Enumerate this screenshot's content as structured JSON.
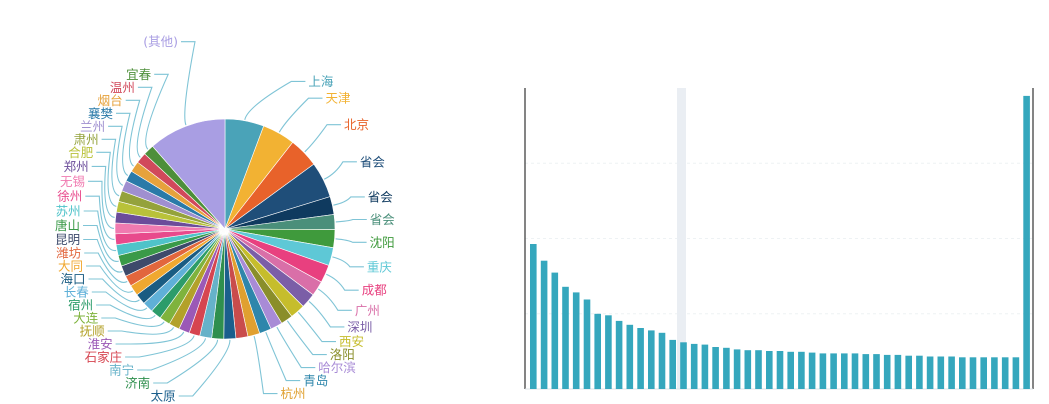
{
  "chart_data": [
    {
      "type": "pie",
      "legend": "none",
      "slices": [
        {
          "label": "上海",
          "value": 6.5,
          "color": "#4aa3b8"
        },
        {
          "label": "天津",
          "value": 5.5,
          "color": "#f2b233"
        },
        {
          "label": "北京",
          "value": 5.0,
          "color": "#e8622a"
        },
        {
          "label": "省会",
          "value": 6.0,
          "color": "#1f4e79"
        },
        {
          "label": "省会",
          "value": 3.0,
          "color": "#0f3a5f"
        },
        {
          "label": "省会",
          "value": 2.5,
          "color": "#4a8f7a"
        },
        {
          "label": "沈阳",
          "value": 3.0,
          "color": "#3f9a3c"
        },
        {
          "label": "重庆",
          "value": 3.0,
          "color": "#5ec8d6"
        },
        {
          "label": "成都",
          "value": 3.0,
          "color": "#e8407f"
        },
        {
          "label": "广州",
          "value": 2.5,
          "color": "#d96fa8"
        },
        {
          "label": "深圳",
          "value": 2.5,
          "color": "#7b5ea7"
        },
        {
          "label": "西安",
          "value": 2.5,
          "color": "#c6bd2c"
        },
        {
          "label": "洛阳",
          "value": 2.0,
          "color": "#8a8e2a"
        },
        {
          "label": "哈尔滨",
          "value": 2.0,
          "color": "#a88bd6"
        },
        {
          "label": "青岛",
          "value": 2.0,
          "color": "#2e86ab"
        },
        {
          "label": "杭州",
          "value": 2.0,
          "color": "#e0a030"
        },
        {
          "label": "",
          "value": 2.0,
          "color": "#c94c4c"
        },
        {
          "label": "太原",
          "value": 2.0,
          "color": "#1b5f8c"
        },
        {
          "label": "济南",
          "value": 2.0,
          "color": "#2f8f4e"
        },
        {
          "label": "南宁",
          "value": 2.0,
          "color": "#66b2c9"
        },
        {
          "label": "石家庄",
          "value": 1.8,
          "color": "#d64550"
        },
        {
          "label": "淮安",
          "value": 1.8,
          "color": "#9b59b6"
        },
        {
          "label": "抚顺",
          "value": 1.8,
          "color": "#b3a12a"
        },
        {
          "label": "大连",
          "value": 1.8,
          "color": "#7fb33d"
        },
        {
          "label": "宿州",
          "value": 1.8,
          "color": "#2c9c6a"
        },
        {
          "label": "长春",
          "value": 1.8,
          "color": "#5fb0d8"
        },
        {
          "label": "海口",
          "value": 1.8,
          "color": "#1a5c82"
        },
        {
          "label": "大同",
          "value": 1.8,
          "color": "#f0a830"
        },
        {
          "label": "潍坊",
          "value": 1.8,
          "color": "#e2663d"
        },
        {
          "label": "昆明",
          "value": 1.8,
          "color": "#3d4a6b"
        },
        {
          "label": "唐山",
          "value": 1.8,
          "color": "#3a9a48"
        },
        {
          "label": "苏州",
          "value": 1.8,
          "color": "#4fc3c9"
        },
        {
          "label": "徐州",
          "value": 1.8,
          "color": "#e84a8c"
        },
        {
          "label": "无锡",
          "value": 1.8,
          "color": "#f07ab0"
        },
        {
          "label": "郑州",
          "value": 1.8,
          "color": "#6b4c9a"
        },
        {
          "label": "合肥",
          "value": 1.8,
          "color": "#b9c23a"
        },
        {
          "label": "肃州",
          "value": 1.8,
          "color": "#94a23c"
        },
        {
          "label": "兰州",
          "value": 1.8,
          "color": "#9f8fd0"
        },
        {
          "label": "襄樊",
          "value": 1.8,
          "color": "#2a7aa8"
        },
        {
          "label": "烟台",
          "value": 1.8,
          "color": "#e6a23c"
        },
        {
          "label": "温州",
          "value": 1.8,
          "color": "#d1495b"
        },
        {
          "label": "宜春",
          "value": 1.8,
          "color": "#4d8f3a"
        },
        {
          "label": "(其他)",
          "value": 13.0,
          "color": "#a99ee3"
        }
      ]
    },
    {
      "type": "bar",
      "color": "#35a7bd",
      "values": [
        183,
        162,
        147,
        129,
        122,
        113,
        95,
        93,
        86,
        81,
        77,
        74,
        71,
        62,
        59,
        57,
        56,
        53,
        52,
        50,
        49,
        49,
        48,
        48,
        47,
        47,
        46,
        45,
        45,
        45,
        45,
        44,
        44,
        43,
        43,
        42,
        42,
        41,
        41,
        41,
        40,
        40,
        40,
        40,
        40,
        40,
        370
      ],
      "ylim": [
        0,
        380
      ]
    }
  ]
}
